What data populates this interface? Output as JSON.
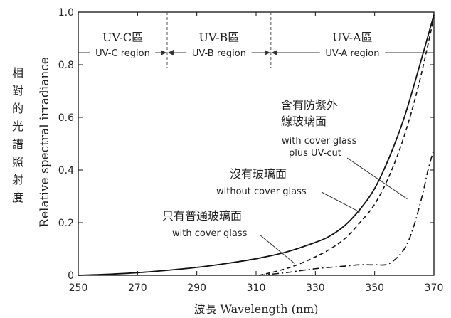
{
  "chart_data": {
    "type": "line",
    "xlabel": "波長 Wavelength (nm)",
    "ylabel_en": "Relative spectral irradiance",
    "ylabel_zh": [
      "相",
      "對",
      "的",
      "光",
      "譜",
      "照",
      "射",
      "度"
    ],
    "xlim": [
      250,
      370
    ],
    "ylim": [
      0,
      1.0
    ],
    "xticks": [
      "250",
      "270",
      "290",
      "310",
      "330",
      "350",
      "370"
    ],
    "yticks": [
      "0",
      "0.2",
      "0.4",
      "0.6",
      "0.8",
      "1.0"
    ],
    "regions": [
      {
        "title": "UV-C區",
        "label": "UV-C region",
        "from": 250,
        "to": 280
      },
      {
        "title": "UV-B區",
        "label": "UV-B region",
        "from": 280,
        "to": 315
      },
      {
        "title": "UV-A區",
        "label": "UV-A region",
        "from": 315,
        "to": 370
      }
    ],
    "series": [
      {
        "style": "solid",
        "x": [
          250,
          260,
          270,
          280,
          290,
          300,
          310,
          320,
          330,
          335,
          340,
          345,
          350,
          355,
          360,
          365,
          370
        ],
        "y": [
          0,
          0.004,
          0.01,
          0.019,
          0.03,
          0.045,
          0.063,
          0.088,
          0.125,
          0.15,
          0.19,
          0.25,
          0.33,
          0.45,
          0.6,
          0.79,
          0.99
        ]
      },
      {
        "style": "dashed",
        "x": [
          311,
          315,
          320,
          325,
          330,
          335,
          340,
          345,
          350,
          355,
          360,
          365,
          370
        ],
        "y": [
          0,
          0.01,
          0.025,
          0.045,
          0.07,
          0.1,
          0.14,
          0.2,
          0.27,
          0.38,
          0.53,
          0.73,
          0.98
        ]
      },
      {
        "style": "dashdot",
        "x": [
          311,
          320,
          330,
          340,
          345,
          350,
          355,
          360,
          363,
          366,
          368,
          370
        ],
        "y": [
          0,
          0.01,
          0.025,
          0.035,
          0.04,
          0.04,
          0.045,
          0.1,
          0.18,
          0.3,
          0.4,
          0.48
        ]
      }
    ],
    "annotations": [
      {
        "lines": [
          "含有防紫外",
          "線玻璃面",
          "with cover glass",
          "plus UV-cut"
        ]
      },
      {
        "lines": [
          "沒有玻璃面",
          "without cover glass"
        ]
      },
      {
        "lines": [
          "只有普通玻璃面",
          "with cover glass"
        ]
      }
    ]
  }
}
